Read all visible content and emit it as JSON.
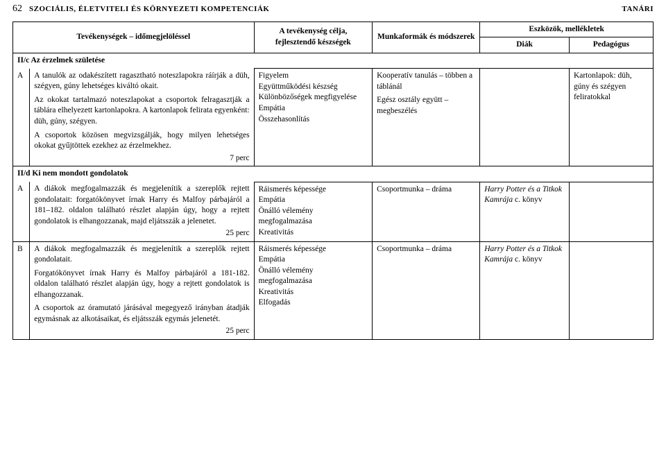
{
  "page_number": "62",
  "header_title": "SZOCIÁLIS, ÉLETVITELI ÉS KÖRNYEZETI KOMPETENCIÁK",
  "header_right": "TANÁRI",
  "columns": {
    "activities": "Tevékenységek – időmegjelöléssel",
    "goals": "A tevékenység célja, fejlesztendő készségek",
    "methods": "Munkaformák és módszerek",
    "tools_header": "Eszközök, mellékletek",
    "student": "Diák",
    "teacher": "Pedagógus"
  },
  "section1": {
    "label": "II/c Az érzelmek születése",
    "row": {
      "mark": "A",
      "text1": "A tanulók az odakészített ragasztható noteszlapokra ráírják a düh, szégyen, gúny lehetséges kiváltó okait.",
      "text2": "Az okokat tartalmazó noteszlapokat a csoportok felragasztják a táblára elhelyezett kartonlapokra. A kartonlapok felirata egyenként: düh, gúny, szégyen.",
      "text3": "A csoportok közösen megvizsgálják, hogy milyen lehetséges okokat gyűjtöttek ezekhez az érzelmekhez.",
      "duration": "7 perc",
      "goals": "Figyelem\nEgyüttműködési készség\nKülönbözőségek megfigyelése\nEmpátia\nÖsszehasonlítás",
      "methods1": "Kooperatív tanulás – többen a táblánál",
      "methods2": "Egész osztály együtt – megbeszélés",
      "student": "",
      "teacher": "Kartonlapok: düh, gúny és szégyen feliratokkal"
    }
  },
  "section2": {
    "label": "II/d Ki nem mondott gondolatok",
    "rowA": {
      "mark": "A",
      "text1": "A diákok megfogalmazzák és megjelenítik a szereplők rejtett gondolatait: forgatókönyvet írnak Harry és Malfoy párbajáról a 181–182. oldalon található részlet alapján úgy, hogy a rejtett gondolatok is elhangozzanak, majd eljátsszák a jelenetet.",
      "duration": "25 perc",
      "goals": "Ráismerés képessége\nEmpátia\nÖnálló vélemény megfogalmazása\nKreativitás",
      "methods": "Csoportmunka – dráma",
      "student_it": "Harry Potter és a Titkok Kamrája",
      "student_rest": " c. könyv",
      "teacher": ""
    },
    "rowB": {
      "mark": "B",
      "text1": "A diákok megfogalmazzák és megjelenítik a szereplők rejtett gondolatait.",
      "text2": "Forgatókönyvet írnak Harry és Malfoy párbajáról a 181-182. oldalon található részlet alapján úgy, hogy a rejtett gondolatok is elhangozzanak.",
      "text3": "A csoportok az óramutató járásával megegyező irányban átadják egymásnak az alkotásaikat, és eljátsszák egymás jelenetét.",
      "duration": "25 perc",
      "goals": "Ráismerés képessége\nEmpátia\nÖnálló vélemény megfogalmazása\nKreativitás\nElfogadás",
      "methods": "Csoportmunka – dráma",
      "student_it": "Harry Potter és a Titkok Kamrája",
      "student_rest": " c. könyv",
      "teacher": ""
    }
  }
}
